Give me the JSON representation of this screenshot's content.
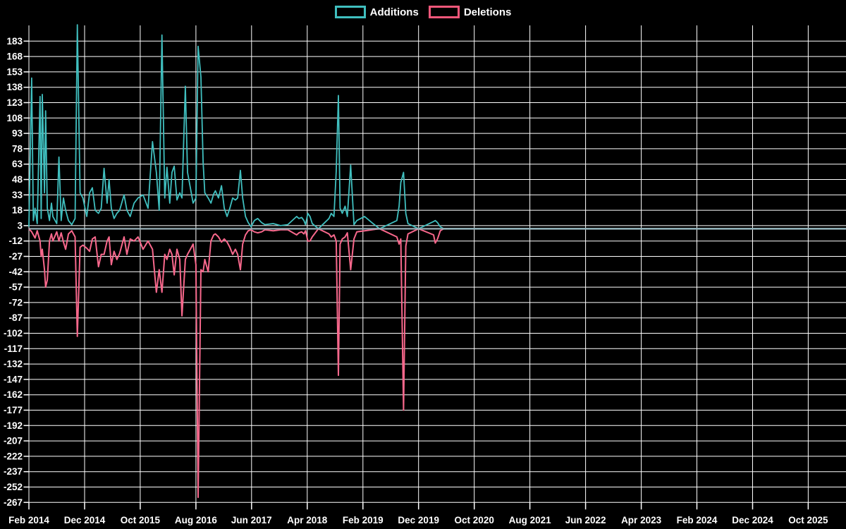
{
  "legend": {
    "items": [
      {
        "label": "Additions",
        "color": "#40bfbf"
      },
      {
        "label": "Deletions",
        "color": "#f2577a"
      }
    ]
  },
  "chart_data": {
    "type": "line",
    "title": "",
    "xlabel": "",
    "ylabel": "",
    "grid": true,
    "legend_position": "top-center",
    "background_color": "#000000",
    "grid_color": "#ffffff",
    "text_color": "#ffffff",
    "colors": {
      "additions": "#40bfbf",
      "deletions": "#f8688c",
      "zero_baseline_overlap": "#9cb3bb"
    },
    "x_axis": {
      "unit": "months since Feb 2014",
      "tick_labels": [
        "Feb 2014",
        "Dec 2014",
        "Oct 2015",
        "Aug 2016",
        "Jun 2017",
        "Apr 2018",
        "Feb 2019",
        "Dec 2019",
        "Oct 2020",
        "Aug 2021",
        "Jun 2022",
        "Apr 2023",
        "Feb 2024",
        "Dec 2024",
        "Oct 2025"
      ],
      "tick_months": [
        0,
        10,
        20,
        30,
        40,
        50,
        60,
        70,
        80,
        90,
        100,
        110,
        120,
        130,
        140
      ],
      "range_months": [
        0,
        146.7
      ]
    },
    "y_axis": {
      "ticks": [
        183,
        168,
        153,
        138,
        123,
        108,
        93,
        78,
        63,
        48,
        33,
        18,
        3,
        -12,
        -27,
        -42,
        -57,
        -72,
        -87,
        -102,
        -117,
        -132,
        -147,
        -162,
        -177,
        -192,
        -207,
        -222,
        -237,
        -252,
        -267
      ],
      "range": [
        -267,
        199
      ]
    },
    "x_months": [
      0,
      0.5,
      0.8,
      1.1,
      1.5,
      2.0,
      2.2,
      2.4,
      2.8,
      3.0,
      3.3,
      3.7,
      4.05,
      4.3,
      5.0,
      5.4,
      5.8,
      6.2,
      6.6,
      7.1,
      7.7,
      8.3,
      8.7,
      9.2,
      9.7,
      10.4,
      10.9,
      11.4,
      11.9,
      12.5,
      13.0,
      13.5,
      14.05,
      14.4,
      14.8,
      15.3,
      15.8,
      16.3,
      17.1,
      17.6,
      18.2,
      18.9,
      19.6,
      20.5,
      21.4,
      22.2,
      22.9,
      23.4,
      23.9,
      24.4,
      24.8,
      25.3,
      25.7,
      26.1,
      26.6,
      27.1,
      27.5,
      28.1,
      28.5,
      29.0,
      29.5,
      30.0,
      30.4,
      30.9,
      31.3,
      31.6,
      32.2,
      32.7,
      33.2,
      33.5,
      34.05,
      34.6,
      35.1,
      35.6,
      36.1,
      36.6,
      37.1,
      37.5,
      38.0,
      38.4,
      38.9,
      39.4,
      39.9,
      40.5,
      41.1,
      41.8,
      42.4,
      43.9,
      45.2,
      46.5,
      48.1,
      48.5,
      49.0,
      49.4,
      49.7,
      50.1,
      50.5,
      50.9,
      52.0,
      53.9,
      54.3,
      54.8,
      55.2,
      55.6,
      55.9,
      56.3,
      56.8,
      57.2,
      57.8,
      58.4,
      58.9,
      60.3,
      61.6,
      63.0,
      66.1,
      66.5,
      66.8,
      67.3,
      67.7,
      68.1,
      70.0,
      72.7,
      73.0,
      73.4,
      73.9,
      74.5,
      146.7
    ],
    "series": [
      {
        "name": "Additions",
        "values": [
          2,
          147,
          8,
          20,
          5,
          129,
          10,
          131,
          35,
          115,
          20,
          8,
          25,
          12,
          5,
          70,
          8,
          30,
          18,
          8,
          4,
          10,
          199,
          35,
          30,
          12,
          35,
          40,
          18,
          15,
          20,
          59,
          25,
          48,
          20,
          10,
          15,
          18,
          33,
          18,
          12,
          25,
          30,
          33,
          20,
          85,
          55,
          18,
          189,
          30,
          60,
          25,
          55,
          61,
          28,
          35,
          30,
          139,
          55,
          40,
          25,
          30,
          178,
          148,
          65,
          35,
          30,
          25,
          34,
          37,
          30,
          42,
          20,
          12,
          20,
          30,
          28,
          30,
          57,
          30,
          12,
          6,
          2,
          8,
          10,
          6,
          4,
          5,
          3,
          4,
          12,
          10,
          11,
          8,
          4,
          15,
          12,
          5,
          0,
          10,
          15,
          12,
          56,
          130,
          20,
          15,
          22,
          12,
          62,
          4,
          8,
          12,
          6,
          0,
          8,
          22,
          45,
          55,
          15,
          5,
          0,
          7,
          8,
          6,
          2,
          0,
          0
        ]
      },
      {
        "name": "Deletions",
        "values": [
          0,
          -3,
          -6,
          -9,
          -2,
          -12,
          -27,
          -20,
          -40,
          -57,
          -50,
          -12,
          -5,
          -12,
          -3,
          -12,
          -4,
          -13,
          -20,
          -5,
          -2,
          -8,
          -105,
          -18,
          -16,
          -19,
          -22,
          -10,
          -8,
          -37,
          -25,
          -25,
          -12,
          -8,
          -35,
          -22,
          -30,
          -24,
          -8,
          -25,
          -10,
          -12,
          -8,
          -20,
          -12,
          -20,
          -62,
          -40,
          -62,
          -25,
          -30,
          -20,
          -25,
          -45,
          -20,
          -30,
          -85,
          -30,
          -25,
          -20,
          -15,
          -35,
          -262,
          -40,
          -42,
          -30,
          -42,
          -12,
          -6,
          -5,
          -8,
          -13,
          -10,
          -13,
          -18,
          -25,
          -20,
          -25,
          -40,
          -15,
          -6,
          -2,
          -1,
          -3,
          -4,
          -3,
          -1,
          -2,
          -1,
          -1,
          -6,
          -4,
          -3,
          -5,
          -2,
          -12,
          -12,
          -8,
          0,
          -5,
          -8,
          -6,
          -12,
          -143,
          -15,
          -10,
          -8,
          -4,
          -40,
          -10,
          -3,
          -2,
          -1,
          0,
          -8,
          -15,
          -10,
          -177,
          -17,
          -5,
          0,
          -6,
          -14,
          -10,
          -2,
          0,
          0
        ]
      }
    ]
  }
}
